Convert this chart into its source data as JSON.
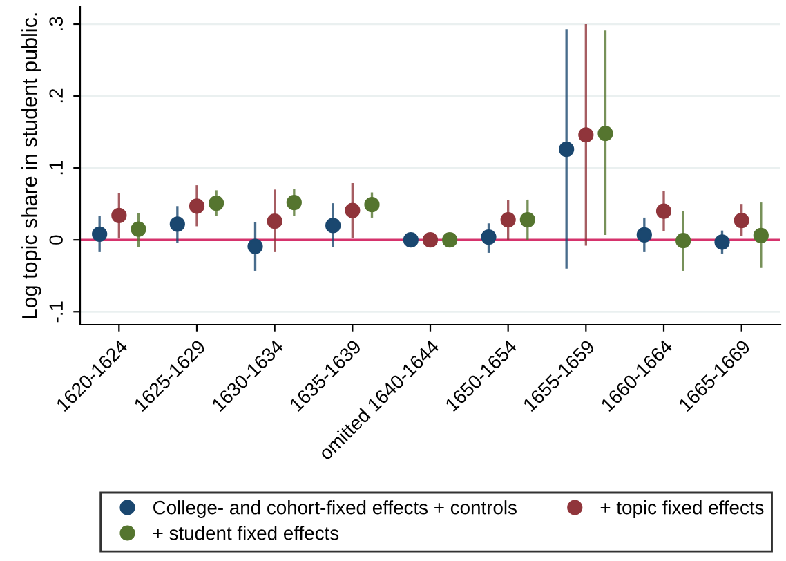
{
  "chart_data": {
    "type": "scatter",
    "ylabel": "Log topic share in student public.",
    "categories": [
      "1620-1624",
      "1625-1629",
      "1630-1634",
      "1635-1639",
      "omitted 1640-1644",
      "1650-1654",
      "1655-1659",
      "1660-1664",
      "1665-1669"
    ],
    "series": [
      {
        "name": "College- and cohort-fixed effects + controls",
        "color": "#1a476f",
        "values": [
          0.008,
          0.022,
          -0.009,
          0.02,
          0,
          0.004,
          0.126,
          0.007,
          -0.003
        ],
        "errors": [
          [
            -0.017,
            0.033
          ],
          [
            -0.004,
            0.047
          ],
          [
            -0.043,
            0.025
          ],
          [
            -0.01,
            0.051
          ],
          null,
          [
            -0.018,
            0.023
          ],
          [
            -0.04,
            0.293
          ],
          [
            -0.017,
            0.031
          ],
          [
            -0.019,
            0.013
          ]
        ]
      },
      {
        "name": "+ topic fixed effects",
        "color": "#90353b",
        "values": [
          0.034,
          0.047,
          0.026,
          0.041,
          0,
          0.028,
          0.146,
          0.04,
          0.027
        ],
        "errors": [
          [
            0.002,
            0.065
          ],
          [
            0.019,
            0.076
          ],
          [
            -0.017,
            0.07
          ],
          [
            0.003,
            0.079
          ],
          null,
          [
            0,
            0.055
          ],
          [
            -0.008,
            0.3
          ],
          [
            0.012,
            0.068
          ],
          [
            0.005,
            0.05
          ]
        ]
      },
      {
        "name": "+ student fixed effects",
        "color": "#55752f",
        "values": [
          0.015,
          0.051,
          0.052,
          0.049,
          0,
          0.028,
          0.148,
          -0.001,
          0.006
        ],
        "errors": [
          [
            -0.01,
            0.037
          ],
          [
            0.033,
            0.069
          ],
          [
            0.033,
            0.071
          ],
          [
            0.031,
            0.066
          ],
          null,
          [
            0,
            0.056
          ],
          [
            0.007,
            0.291
          ],
          [
            -0.043,
            0.04
          ],
          [
            -0.039,
            0.052
          ]
        ]
      }
    ],
    "ylim": [
      -0.118,
      0.324
    ],
    "yticks": [
      {
        "value": -0.1,
        "label": "-.1"
      },
      {
        "value": 0,
        "label": "0"
      },
      {
        "value": 0.1,
        "label": ".1"
      },
      {
        "value": 0.2,
        "label": ".2"
      },
      {
        "value": 0.3,
        "label": ".3"
      }
    ],
    "ref_lines": [
      {
        "axis": "y",
        "value": 0,
        "color": "#d6336c"
      }
    ],
    "grid": "y",
    "legend": "bottom",
    "marker": "circle"
  }
}
